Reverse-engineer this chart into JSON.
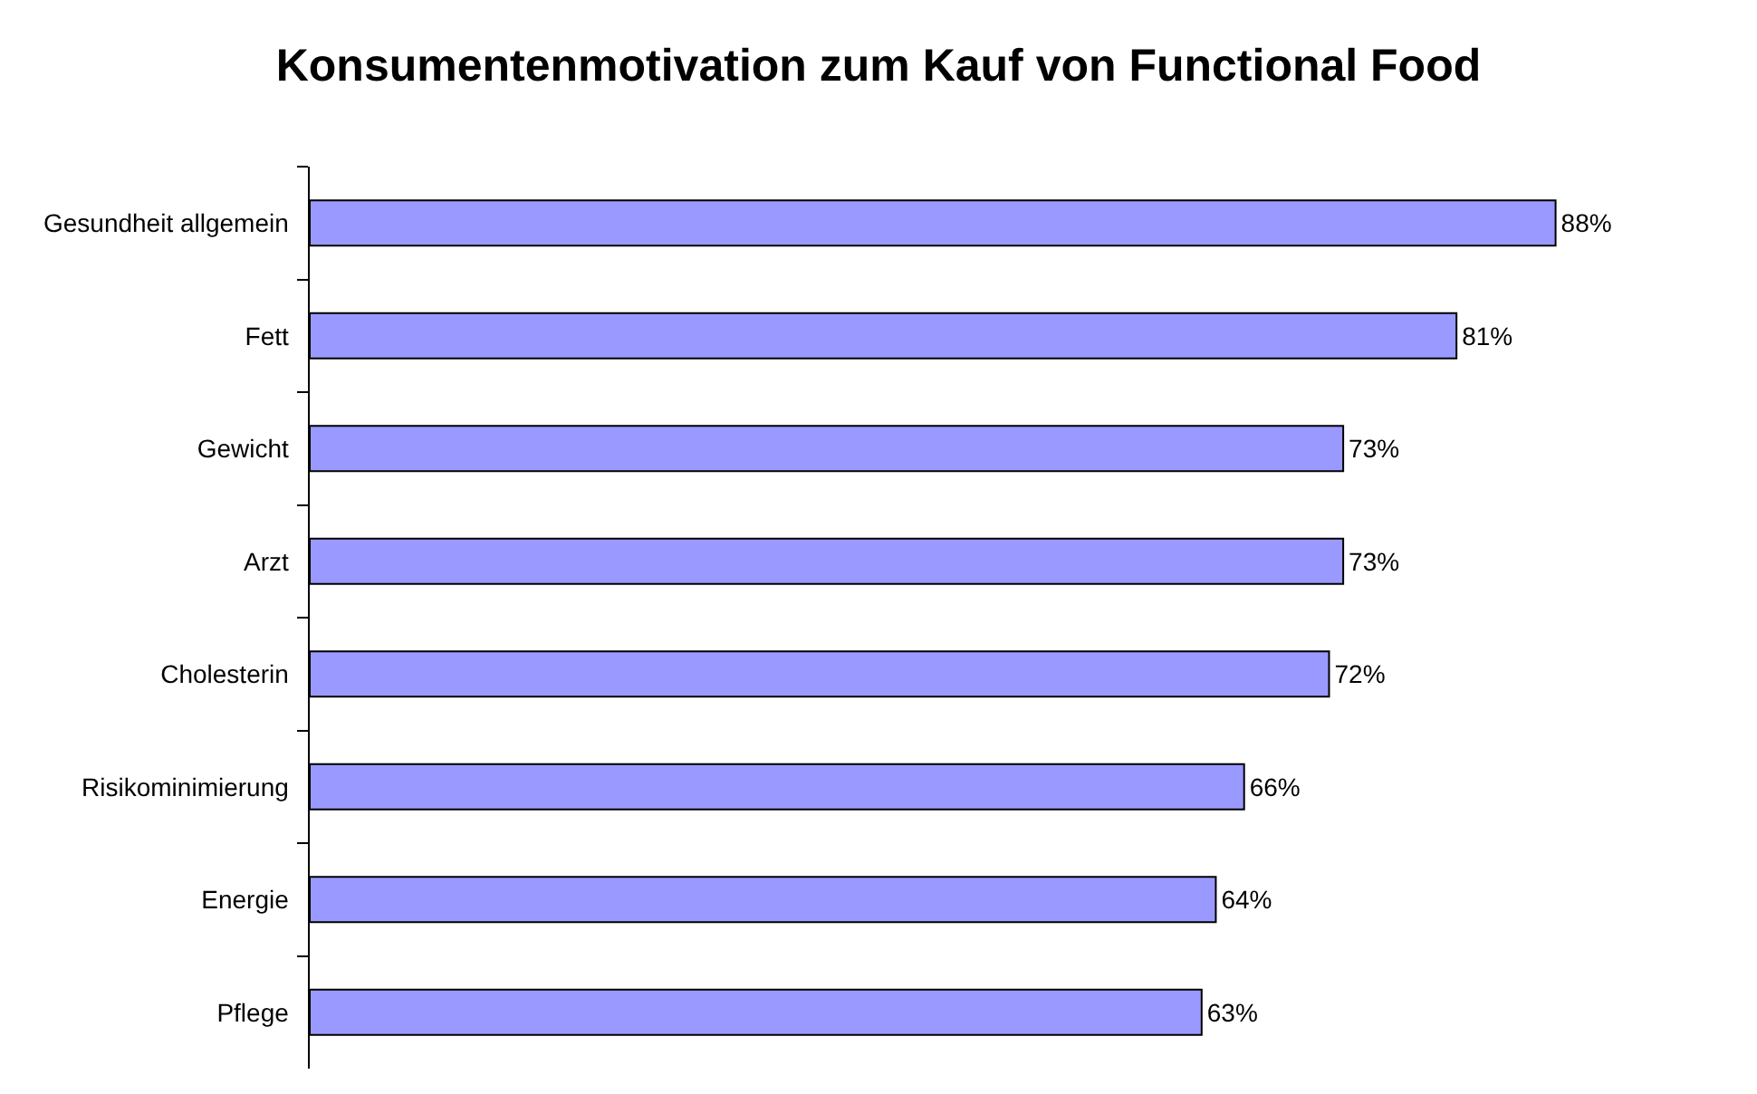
{
  "chart_data": {
    "type": "bar",
    "orientation": "horizontal",
    "title": "Konsumentenmotivation zum Kauf von Functional Food",
    "categories": [
      "Gesundheit allgemein",
      "Fett",
      "Gewicht",
      "Arzt",
      "Cholesterin",
      "Risikominimierung",
      "Energie",
      "Pflege"
    ],
    "values": [
      88,
      81,
      73,
      73,
      72,
      66,
      64,
      63
    ],
    "value_labels": [
      "88%",
      "81%",
      "73%",
      "73%",
      "72%",
      "66%",
      "64%",
      "63%"
    ],
    "color": "#9999ff",
    "tick_labels": "y"
  }
}
